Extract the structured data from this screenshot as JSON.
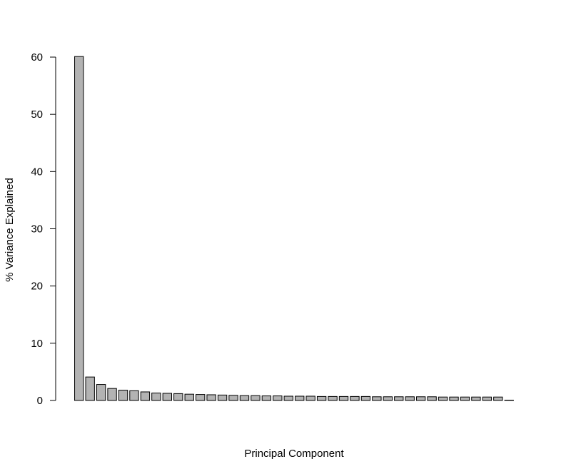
{
  "chart_data": {
    "type": "bar",
    "xlabel": "Principal Component",
    "ylabel": "% Variance Explained",
    "ylim": [
      0,
      60
    ],
    "yticks": [
      0,
      10,
      20,
      30,
      40,
      50,
      60
    ],
    "bar_color": "#b3b3b3",
    "grid": false,
    "values": [
      60.1,
      4.1,
      2.8,
      2.1,
      1.8,
      1.7,
      1.5,
      1.3,
      1.25,
      1.2,
      1.1,
      1.05,
      1.0,
      0.95,
      0.9,
      0.85,
      0.85,
      0.8,
      0.8,
      0.75,
      0.75,
      0.75,
      0.7,
      0.7,
      0.7,
      0.7,
      0.7,
      0.65,
      0.65,
      0.65,
      0.65,
      0.65,
      0.65,
      0.6,
      0.6,
      0.6,
      0.6,
      0.6,
      0.6,
      0.05
    ]
  }
}
